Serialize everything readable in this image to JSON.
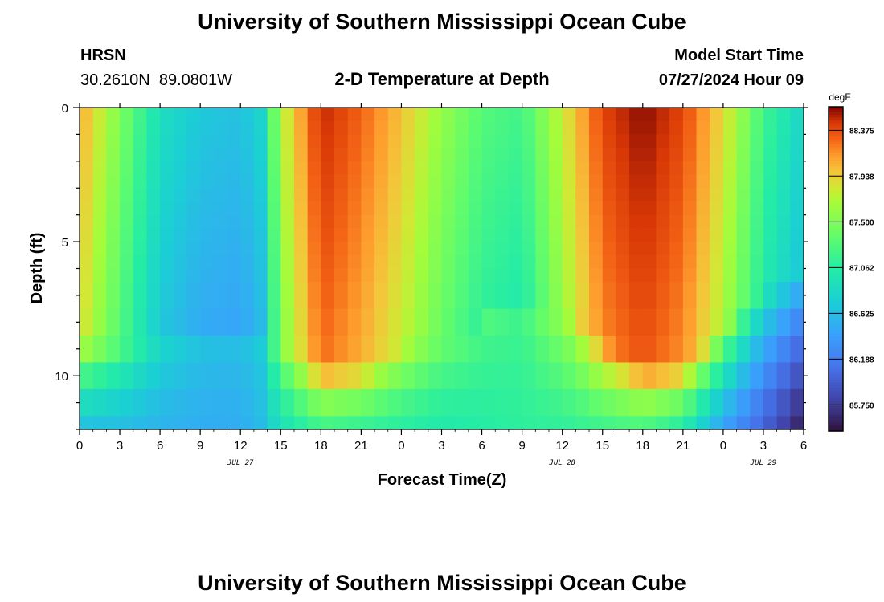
{
  "page": {
    "title": "University of Southern Mississippi Ocean Cube",
    "footer_title": "University of Southern Mississippi Ocean Cube"
  },
  "station": {
    "name": "HRSN",
    "coords": "30.2610N  89.0801W"
  },
  "model": {
    "label": "Model Start Time",
    "start": "07/27/2024 Hour 09"
  },
  "chart_data": {
    "type": "heatmap",
    "title": "2-D Temperature at Depth",
    "xlabel": "Forecast Time(Z)",
    "ylabel": "Depth (ft)",
    "x_ticks": [
      "0",
      "3",
      "6",
      "9",
      "12",
      "15",
      "18",
      "21",
      "0",
      "3",
      "6",
      "9",
      "12",
      "15",
      "18",
      "21",
      "0",
      "3",
      "6"
    ],
    "x_hours": [
      0,
      3,
      6,
      9,
      12,
      15,
      18,
      21,
      24,
      27,
      30,
      33,
      36,
      39,
      42,
      45,
      48,
      51,
      54
    ],
    "x_range_hours": [
      0,
      54
    ],
    "date_labels": [
      {
        "text": "JUL 27",
        "hour": 12
      },
      {
        "text": "JUL 28",
        "hour": 36
      },
      {
        "text": "JUL 29",
        "hour": 51
      }
    ],
    "y_ticks": [
      "0",
      "5",
      "10"
    ],
    "y_tick_values": [
      0,
      5,
      10
    ],
    "y_range_ft": [
      0,
      12
    ],
    "colorbar": {
      "unit": "degF",
      "min": 85.5,
      "max": 88.6,
      "labels": [
        "88.375",
        "87.938",
        "87.500",
        "87.062",
        "86.625",
        "86.188",
        "85.750"
      ],
      "label_values": [
        88.375,
        87.938,
        87.5,
        87.062,
        86.625,
        86.188,
        85.75
      ]
    },
    "depth_layers_ft": [
      [
        0.0,
        0.5
      ],
      [
        0.5,
        1.0
      ],
      [
        1.0,
        1.5
      ],
      [
        1.5,
        2.0
      ],
      [
        2.0,
        2.5
      ],
      [
        2.5,
        3.0
      ],
      [
        3.0,
        3.5
      ],
      [
        3.5,
        4.0
      ],
      [
        4.0,
        4.5
      ],
      [
        4.5,
        5.0
      ],
      [
        5.0,
        5.5
      ],
      [
        5.5,
        6.0
      ],
      [
        6.0,
        6.5
      ],
      [
        6.5,
        7.5
      ],
      [
        7.5,
        8.5
      ],
      [
        8.5,
        9.5
      ],
      [
        9.5,
        10.5
      ],
      [
        10.5,
        11.5
      ],
      [
        11.5,
        12.0
      ]
    ],
    "time_keypoints_hours": [
      0,
      3,
      6,
      9,
      12,
      13.5,
      15,
      18,
      21,
      24,
      27,
      30,
      33,
      36,
      39,
      42,
      45,
      48,
      51,
      54
    ],
    "surface_profile_degF": [
      88.1,
      87.5,
      86.9,
      86.7,
      86.65,
      86.8,
      87.7,
      88.5,
      88.3,
      88.0,
      87.6,
      87.3,
      87.2,
      87.8,
      88.4,
      88.58,
      88.4,
      87.9,
      87.2,
      86.8
    ],
    "mixed_layer_depth_ft": [
      8.5,
      8.5,
      8.5,
      8.5,
      8.5,
      8.0,
      8.5,
      9.5,
      9.5,
      8.5,
      8.0,
      8.0,
      7.5,
      7.0,
      8.5,
      9.5,
      9.5,
      8.0,
      6.5,
      6.0
    ],
    "bottom_layer_degF": [
      86.6,
      86.6,
      86.55,
      86.5,
      86.5,
      86.6,
      86.9,
      87.15,
      87.1,
      87.05,
      87.0,
      87.05,
      87.1,
      87.1,
      87.15,
      87.2,
      87.0,
      86.4,
      86.0,
      85.55
    ],
    "series": []
  }
}
